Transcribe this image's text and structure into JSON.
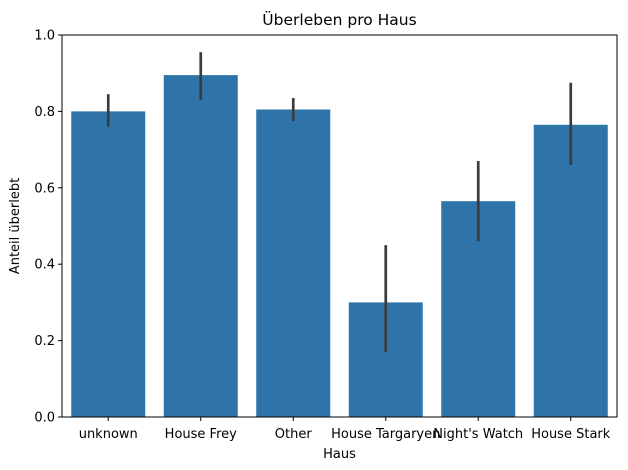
{
  "chart_data": {
    "type": "bar",
    "title": "Überleben pro Haus",
    "xlabel": "Haus",
    "ylabel": "Anteil überlebt",
    "categories": [
      "unknown",
      "House Frey",
      "Other",
      "House Targaryen",
      "Night's Watch",
      "House Stark"
    ],
    "values": [
      0.8,
      0.895,
      0.805,
      0.3,
      0.565,
      0.765
    ],
    "ci_low": [
      0.76,
      0.83,
      0.775,
      0.17,
      0.46,
      0.66
    ],
    "ci_high": [
      0.845,
      0.955,
      0.835,
      0.45,
      0.67,
      0.875
    ],
    "ylim": [
      0,
      1.0
    ],
    "yticks": [
      "0.0",
      "0.2",
      "0.4",
      "0.6",
      "0.8",
      "1.0"
    ],
    "grid": false,
    "bar_color": "#2f74a8",
    "errorbar_color": "#3b3b3b"
  }
}
